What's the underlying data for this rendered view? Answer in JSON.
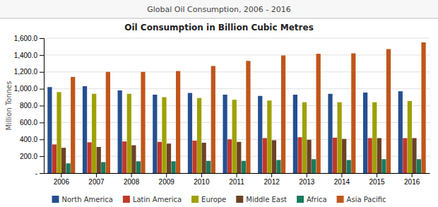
{
  "chart_data": {
    "type": "bar",
    "title": "Global Oil Consumption, 2006 - 2016",
    "subtitle": "Oil Consumption in Billion Cubic Metres",
    "ylabel": "Million Tonnes",
    "categories": [
      "2006",
      "2007",
      "2008",
      "2009",
      "2010",
      "2011",
      "2012",
      "2013",
      "2014",
      "2015",
      "2016"
    ],
    "series": [
      {
        "name": "North America",
        "color": "#254F8F",
        "values": [
          1020,
          1030,
          980,
          930,
          950,
          930,
          915,
          930,
          940,
          955,
          970
        ]
      },
      {
        "name": "Latin America",
        "color": "#C0392B",
        "values": [
          340,
          365,
          375,
          370,
          385,
          400,
          415,
          425,
          420,
          415,
          415
        ]
      },
      {
        "name": "Europe",
        "color": "#9FA000",
        "values": [
          960,
          940,
          940,
          900,
          890,
          870,
          860,
          840,
          840,
          840,
          855
        ]
      },
      {
        "name": "Middle East",
        "color": "#6B4226",
        "values": [
          300,
          310,
          330,
          350,
          360,
          370,
          390,
          395,
          405,
          415,
          415
        ]
      },
      {
        "name": "Africa",
        "color": "#1A7A5E",
        "values": [
          115,
          130,
          140,
          140,
          145,
          145,
          155,
          165,
          155,
          165,
          165
        ]
      },
      {
        "name": "Asia Pacific",
        "color": "#C0561A",
        "values": [
          1140,
          1200,
          1200,
          1210,
          1270,
          1330,
          1395,
          1415,
          1420,
          1470,
          1550
        ]
      }
    ],
    "ylim": [
      0,
      1600
    ],
    "yticks": [
      {
        "value": 0,
        "label": "-"
      },
      {
        "value": 200,
        "label": "200.0"
      },
      {
        "value": 400,
        "label": "400.0"
      },
      {
        "value": 600,
        "label": "600.0"
      },
      {
        "value": 800,
        "label": "800.0"
      },
      {
        "value": 1000,
        "label": "1,000.0"
      },
      {
        "value": 1200,
        "label": "1,200.0"
      },
      {
        "value": 1400,
        "label": "1,400.0"
      },
      {
        "value": 1600,
        "label": "1,600.0"
      }
    ],
    "grid": true,
    "legend": "bottom"
  }
}
